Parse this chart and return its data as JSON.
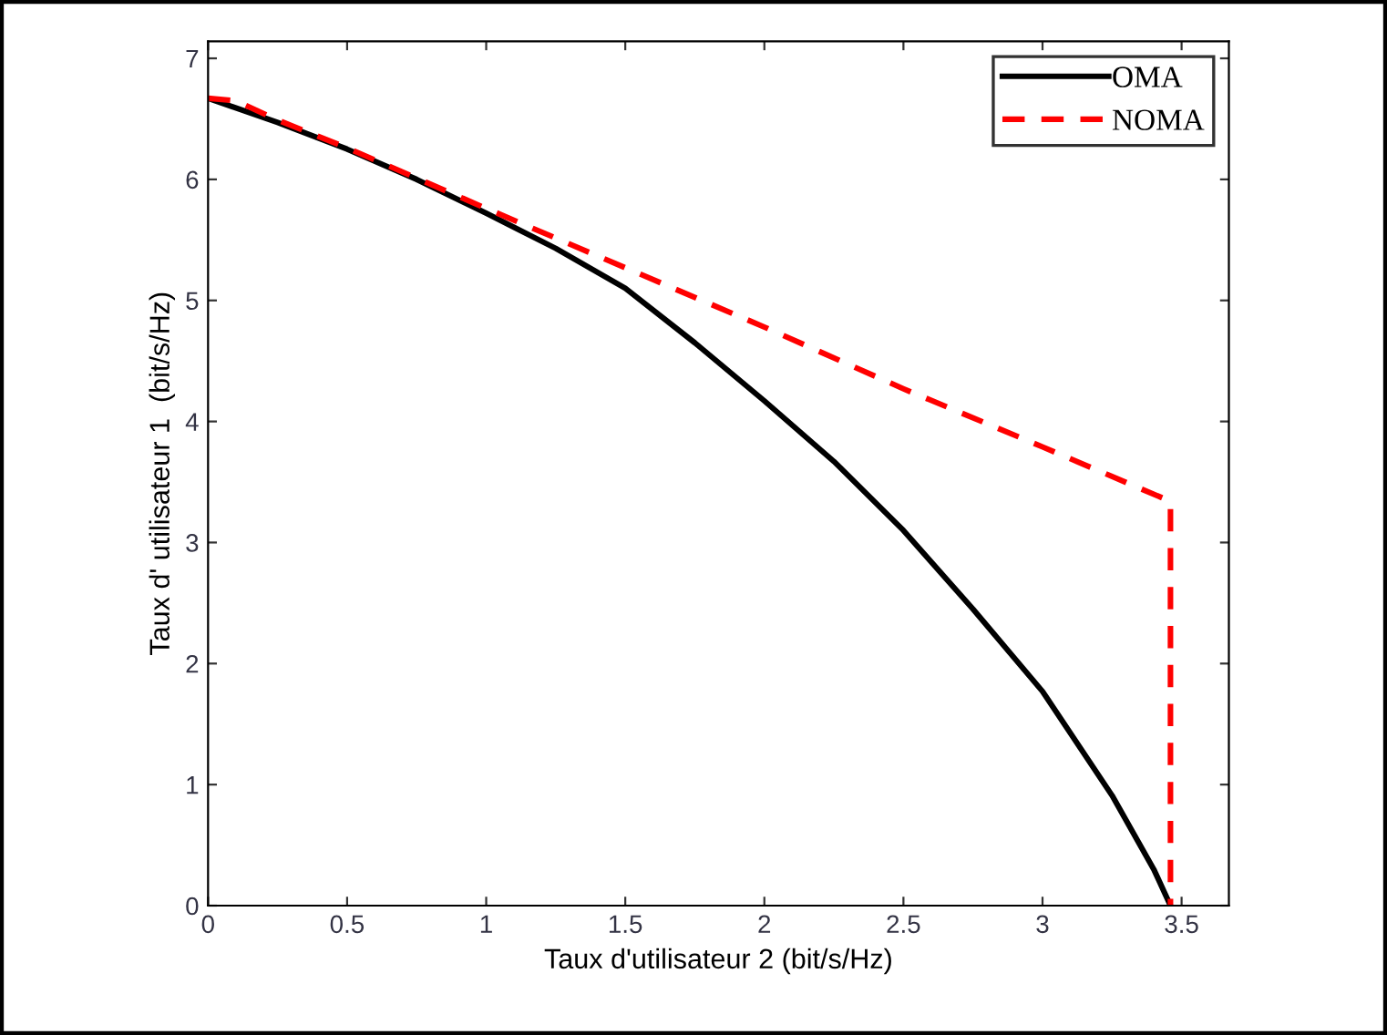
{
  "chart_data": {
    "type": "line",
    "xlabel": "Taux d'utilisateur 2 (bit/s/Hz)",
    "ylabel": "Taux d' utilisateur 1  (bit/s/Hz)",
    "xlim": [
      0,
      3.67
    ],
    "ylim": [
      0,
      7.14
    ],
    "xticks": [
      0,
      0.5,
      1,
      1.5,
      2,
      2.5,
      3,
      3.5
    ],
    "yticks": [
      0,
      1,
      2,
      3,
      4,
      5,
      6,
      7
    ],
    "grid": false,
    "legend": "top right",
    "series": [
      {
        "name": "OMA",
        "color": "#000000",
        "line_style": "solid",
        "x": [
          0,
          0.25,
          0.5,
          0.75,
          1,
          1.25,
          1.5,
          1.75,
          2,
          2.25,
          2.5,
          2.75,
          3,
          3.25,
          3.4,
          3.46
        ],
        "values": [
          6.67,
          6.47,
          6.25,
          6.0,
          5.72,
          5.43,
          5.1,
          4.65,
          4.17,
          3.67,
          3.1,
          2.45,
          1.77,
          0.91,
          0.3,
          0
        ]
      },
      {
        "name": "NOMA",
        "color": "#ff0000",
        "line_style": "dashed",
        "x": [
          0,
          0.1,
          0.25,
          0.5,
          0.75,
          1,
          1.5,
          2,
          2.5,
          3,
          3.46,
          3.46
        ],
        "values": [
          6.67,
          6.65,
          6.49,
          6.26,
          6.01,
          5.76,
          5.27,
          4.78,
          4.27,
          3.79,
          3.34,
          0
        ]
      }
    ]
  }
}
